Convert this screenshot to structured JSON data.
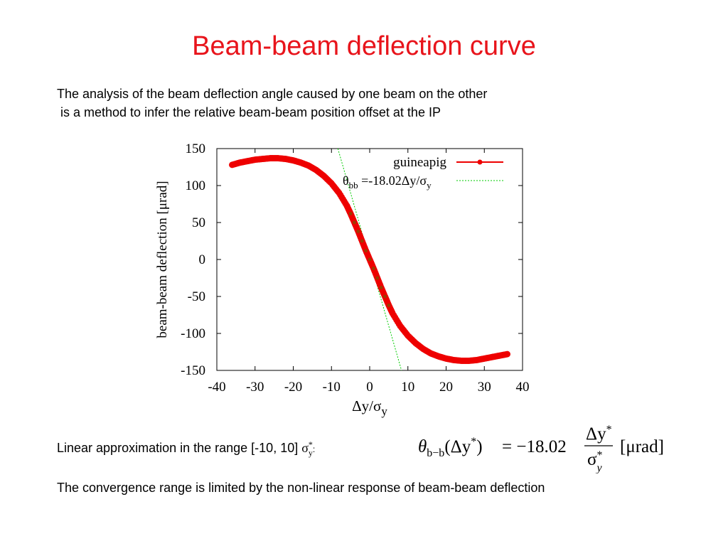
{
  "title": "Beam-beam deflection curve",
  "intro": {
    "line1": "The analysis of the beam deflection angle caused by one beam on the other",
    "line2": " is a method to infer the relative beam-beam position offset at the IP"
  },
  "approx": {
    "text": "Linear approximation in the range [-10, 10] ",
    "sigma": "σ",
    "sup": "*",
    "sub": "y",
    "colon": ":"
  },
  "formula": {
    "lhs_theta": "θ",
    "lhs_sub": "b−b",
    "lhs_arg": "(Δy",
    "lhs_star": "*",
    "lhs_close": ")",
    "equals_coef": "= −18.02",
    "num": "Δy",
    "num_star": "*",
    "den": "σ",
    "den_star": "*",
    "den_sub": "y",
    "unit": "[μrad]"
  },
  "conclusion": "The convergence range is limited by the non-linear response of beam-beam deflection",
  "chart_data": {
    "type": "scatter",
    "xlabel_main": "Δy/σ",
    "xlabel_sub": "y",
    "ylabel": "beam-beam deflection [μrad]",
    "xlim": [
      -40,
      40
    ],
    "ylim": [
      -150,
      150
    ],
    "xticks": [
      -40,
      -30,
      -20,
      -10,
      0,
      10,
      20,
      30,
      40
    ],
    "yticks": [
      150,
      100,
      50,
      0,
      -50,
      -100,
      -150
    ],
    "grid": false,
    "legend_position": "top-right",
    "colors": {
      "simulation": "#ee0000",
      "fit": "#00cc00"
    },
    "series": [
      {
        "name": "guineapig",
        "x": [
          -36,
          -34,
          -32,
          -30,
          -28,
          -26,
          -24,
          -22,
          -20,
          -18,
          -16,
          -14,
          -12,
          -10,
          -8,
          -6,
          -5,
          -4,
          -3,
          -2,
          -1,
          0,
          1,
          2,
          3,
          4,
          5,
          6,
          8,
          10,
          12,
          14,
          16,
          18,
          20,
          22,
          24,
          26,
          28,
          30,
          32,
          34,
          36
        ],
        "y": [
          128,
          131,
          133,
          135,
          136,
          137,
          137,
          136,
          134,
          131,
          127,
          121,
          113,
          103,
          90,
          73,
          62,
          50,
          38,
          25,
          12,
          0,
          -12,
          -25,
          -38,
          -50,
          -62,
          -73,
          -90,
          -103,
          -113,
          -121,
          -127,
          -131,
          -134,
          -136,
          -137,
          -137,
          -136,
          -134,
          -132,
          -130,
          -128
        ]
      },
      {
        "name_prefix": "θ",
        "name_sub": "bb",
        "name_rest": " =-18.02Δy/σ",
        "name_sub2": "y",
        "slope": -18.02
      }
    ]
  }
}
